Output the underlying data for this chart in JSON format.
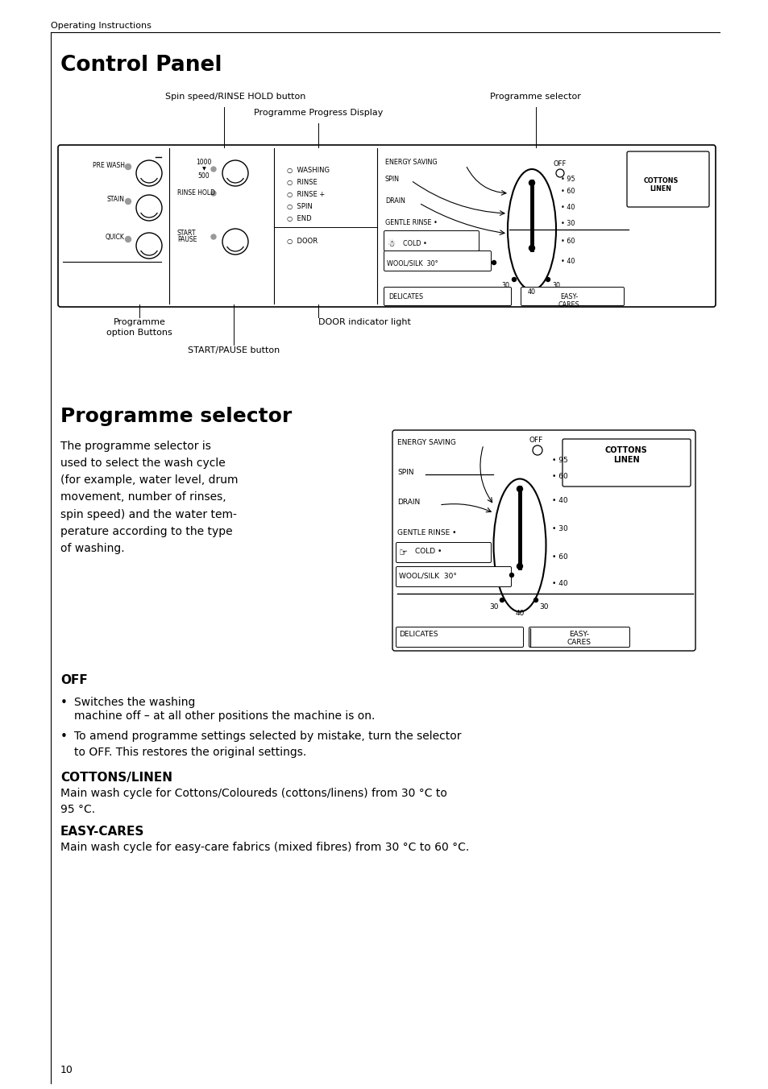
{
  "page_header": "Operating Instructions",
  "title1": "Control Panel",
  "title2": "Programme selector",
  "label_spin_speed": "Spin speed/RINSE HOLD button",
  "label_prog_selector": "Programme selector",
  "label_prog_progress": "Programme Progress Display",
  "label_prog_option": "Programme\noption Buttons",
  "label_door_indicator": "DOOR indicator light",
  "label_start_pause": "START/PAUSE button",
  "section_off_title": "OFF",
  "section_off_b1a": "Switches the washing",
  "section_off_b1b": "machine off – at all other positions the machine is on.",
  "section_off_b2": "To amend programme settings selected by mistake, turn the selector\nto OFF. This restores the original settings.",
  "section_cottons_title": "COTTONS/LINEN",
  "section_cottons_text": "Main wash cycle for Cottons/Coloureds (cottons/linens) from 30 °C to\n95 °C.",
  "section_easycares_title": "EASY-CARES",
  "section_easycares_text": "Main wash cycle for easy-care fabrics (mixed fibres) from 30 °C to 60 °C.",
  "page_number": "10",
  "bg_color": "#ffffff",
  "text_color": "#000000"
}
